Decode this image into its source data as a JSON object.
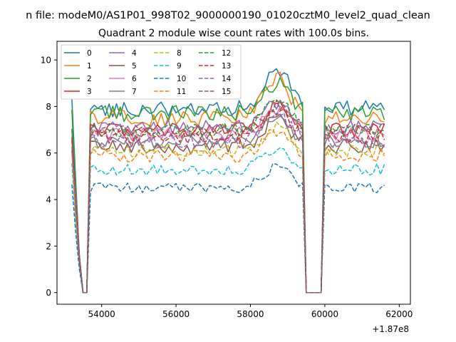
{
  "chart_data": {
    "type": "line",
    "suptitle": "n file: modeM0/AS1P01_998T02_9000000190_01020cztM0_level2_quad_clean",
    "title": "Quadrant 2 module wise count rates with 100.0s bins.",
    "xlabel": "",
    "ylabel": "",
    "x_offset_label": "+1.87e8",
    "xlim": [
      52800,
      62300
    ],
    "ylim": [
      -0.5,
      10.8
    ],
    "x_ticks": [
      54000,
      56000,
      58000,
      60000,
      62000
    ],
    "x_tick_labels": [
      "54000",
      "56000",
      "58000",
      "60000",
      "62000"
    ],
    "y_ticks": [
      0,
      2,
      4,
      6,
      8,
      10
    ],
    "y_tick_labels": [
      "0",
      "2",
      "4",
      "6",
      "8",
      "10"
    ],
    "segments": [
      {
        "start": 53200,
        "end": 53400,
        "step": 100,
        "decay": [
          1.0,
          0.6,
          0.22
        ]
      },
      {
        "start": 53500,
        "end": 53600,
        "step": 100,
        "zero": true
      },
      {
        "start": 53700,
        "end": 59400,
        "step": 100
      },
      {
        "start": 59500,
        "end": 59900,
        "step": 100,
        "zero": true
      },
      {
        "start": 60000,
        "end": 61600,
        "step": 100
      }
    ],
    "flare": {
      "center": 58700,
      "width": 500
    },
    "legend": {
      "location": "upper left",
      "columns": 4
    },
    "series": [
      {
        "name": "0",
        "color": "#1f77b4",
        "dash": "solid",
        "base": 7.9,
        "flare": 1.8,
        "noise": 0.35
      },
      {
        "name": "1",
        "color": "#ff7f0e",
        "dash": "solid",
        "base": 7.5,
        "flare": 1.7,
        "noise": 0.35
      },
      {
        "name": "2",
        "color": "#2ca02c",
        "dash": "solid",
        "base": 7.7,
        "flare": 1.3,
        "noise": 0.35
      },
      {
        "name": "3",
        "color": "#d62728",
        "dash": "solid",
        "base": 7.0,
        "flare": 1.0,
        "noise": 0.3
      },
      {
        "name": "4",
        "color": "#9467bd",
        "dash": "solid",
        "base": 7.1,
        "flare": 1.0,
        "noise": 0.3
      },
      {
        "name": "5",
        "color": "#8c564b",
        "dash": "solid",
        "base": 6.3,
        "flare": 1.2,
        "noise": 0.35
      },
      {
        "name": "6",
        "color": "#e377c2",
        "dash": "solid",
        "base": 6.8,
        "flare": 1.1,
        "noise": 0.3
      },
      {
        "name": "7",
        "color": "#7f7f7f",
        "dash": "solid",
        "base": 6.5,
        "flare": 1.0,
        "noise": 0.3
      },
      {
        "name": "8",
        "color": "#bcbd22",
        "dash": "dashed",
        "base": 6.1,
        "flare": 1.0,
        "noise": 0.3
      },
      {
        "name": "9",
        "color": "#17becf",
        "dash": "dashed",
        "base": 5.3,
        "flare": 0.9,
        "noise": 0.25
      },
      {
        "name": "10",
        "color": "#1f77b4",
        "dash": "dashed",
        "base": 4.5,
        "flare": 0.9,
        "noise": 0.22
      },
      {
        "name": "11",
        "color": "#ff7f0e",
        "dash": "dashed",
        "base": 5.9,
        "flare": 1.0,
        "noise": 0.3
      },
      {
        "name": "12",
        "color": "#2ca02c",
        "dash": "dashed",
        "base": 7.0,
        "flare": 1.2,
        "noise": 0.3
      },
      {
        "name": "13",
        "color": "#d62728",
        "dash": "dashed",
        "base": 6.7,
        "flare": 1.2,
        "noise": 0.3
      },
      {
        "name": "14",
        "color": "#9467bd",
        "dash": "dashed",
        "base": 6.5,
        "flare": 1.2,
        "noise": 0.3
      },
      {
        "name": "15",
        "color": "#8c564b",
        "dash": "dashed",
        "base": 7.0,
        "flare": 1.0,
        "noise": 0.3
      }
    ]
  }
}
